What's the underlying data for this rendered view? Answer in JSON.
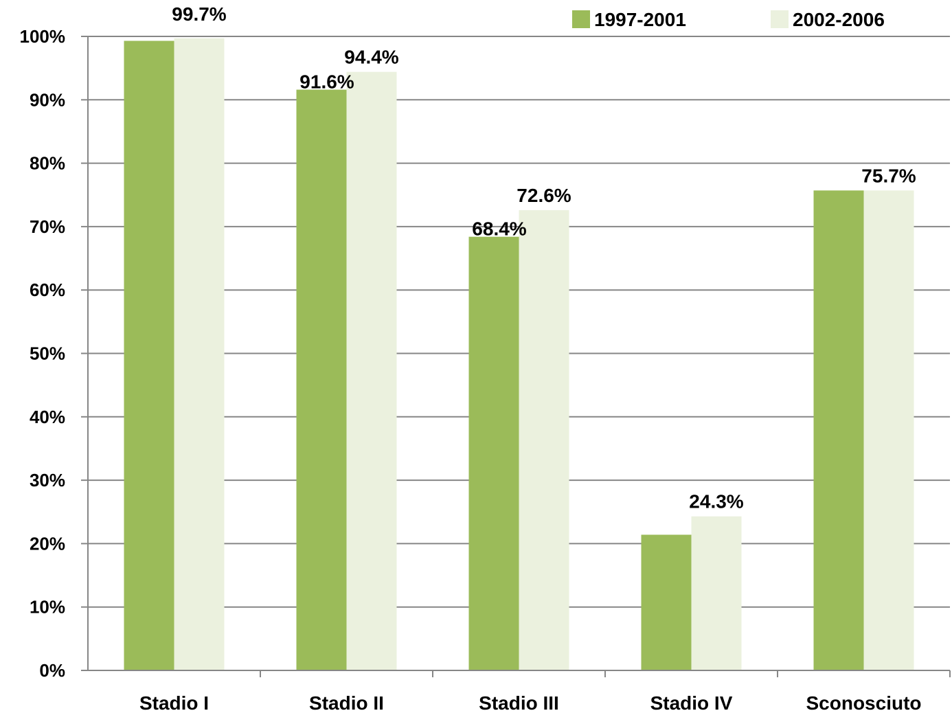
{
  "chart_data": {
    "type": "bar",
    "categories": [
      "Stadio I",
      "Stadio II",
      "Stadio III",
      "Stadio IV",
      "Sconosciuto"
    ],
    "series": [
      {
        "name": "1997-2001",
        "color": "#9bbb59",
        "values": [
          99.3,
          91.6,
          68.4,
          21.4,
          75.7
        ],
        "labels": [
          null,
          "91.6%",
          "68.4%",
          null,
          null
        ]
      },
      {
        "name": "2002-2006",
        "color": "#ebf1de",
        "values": [
          99.7,
          94.4,
          72.6,
          24.3,
          75.7
        ],
        "labels": [
          "99.7%",
          "94.4%",
          "72.6%",
          "24.3%",
          "75.7%"
        ]
      }
    ],
    "ylim": [
      0,
      100
    ],
    "yticks": [
      "0%",
      "10%",
      "20%",
      "30%",
      "40%",
      "50%",
      "60%",
      "70%",
      "80%",
      "90%",
      "100%"
    ],
    "grid": true,
    "legend": "top-right"
  }
}
